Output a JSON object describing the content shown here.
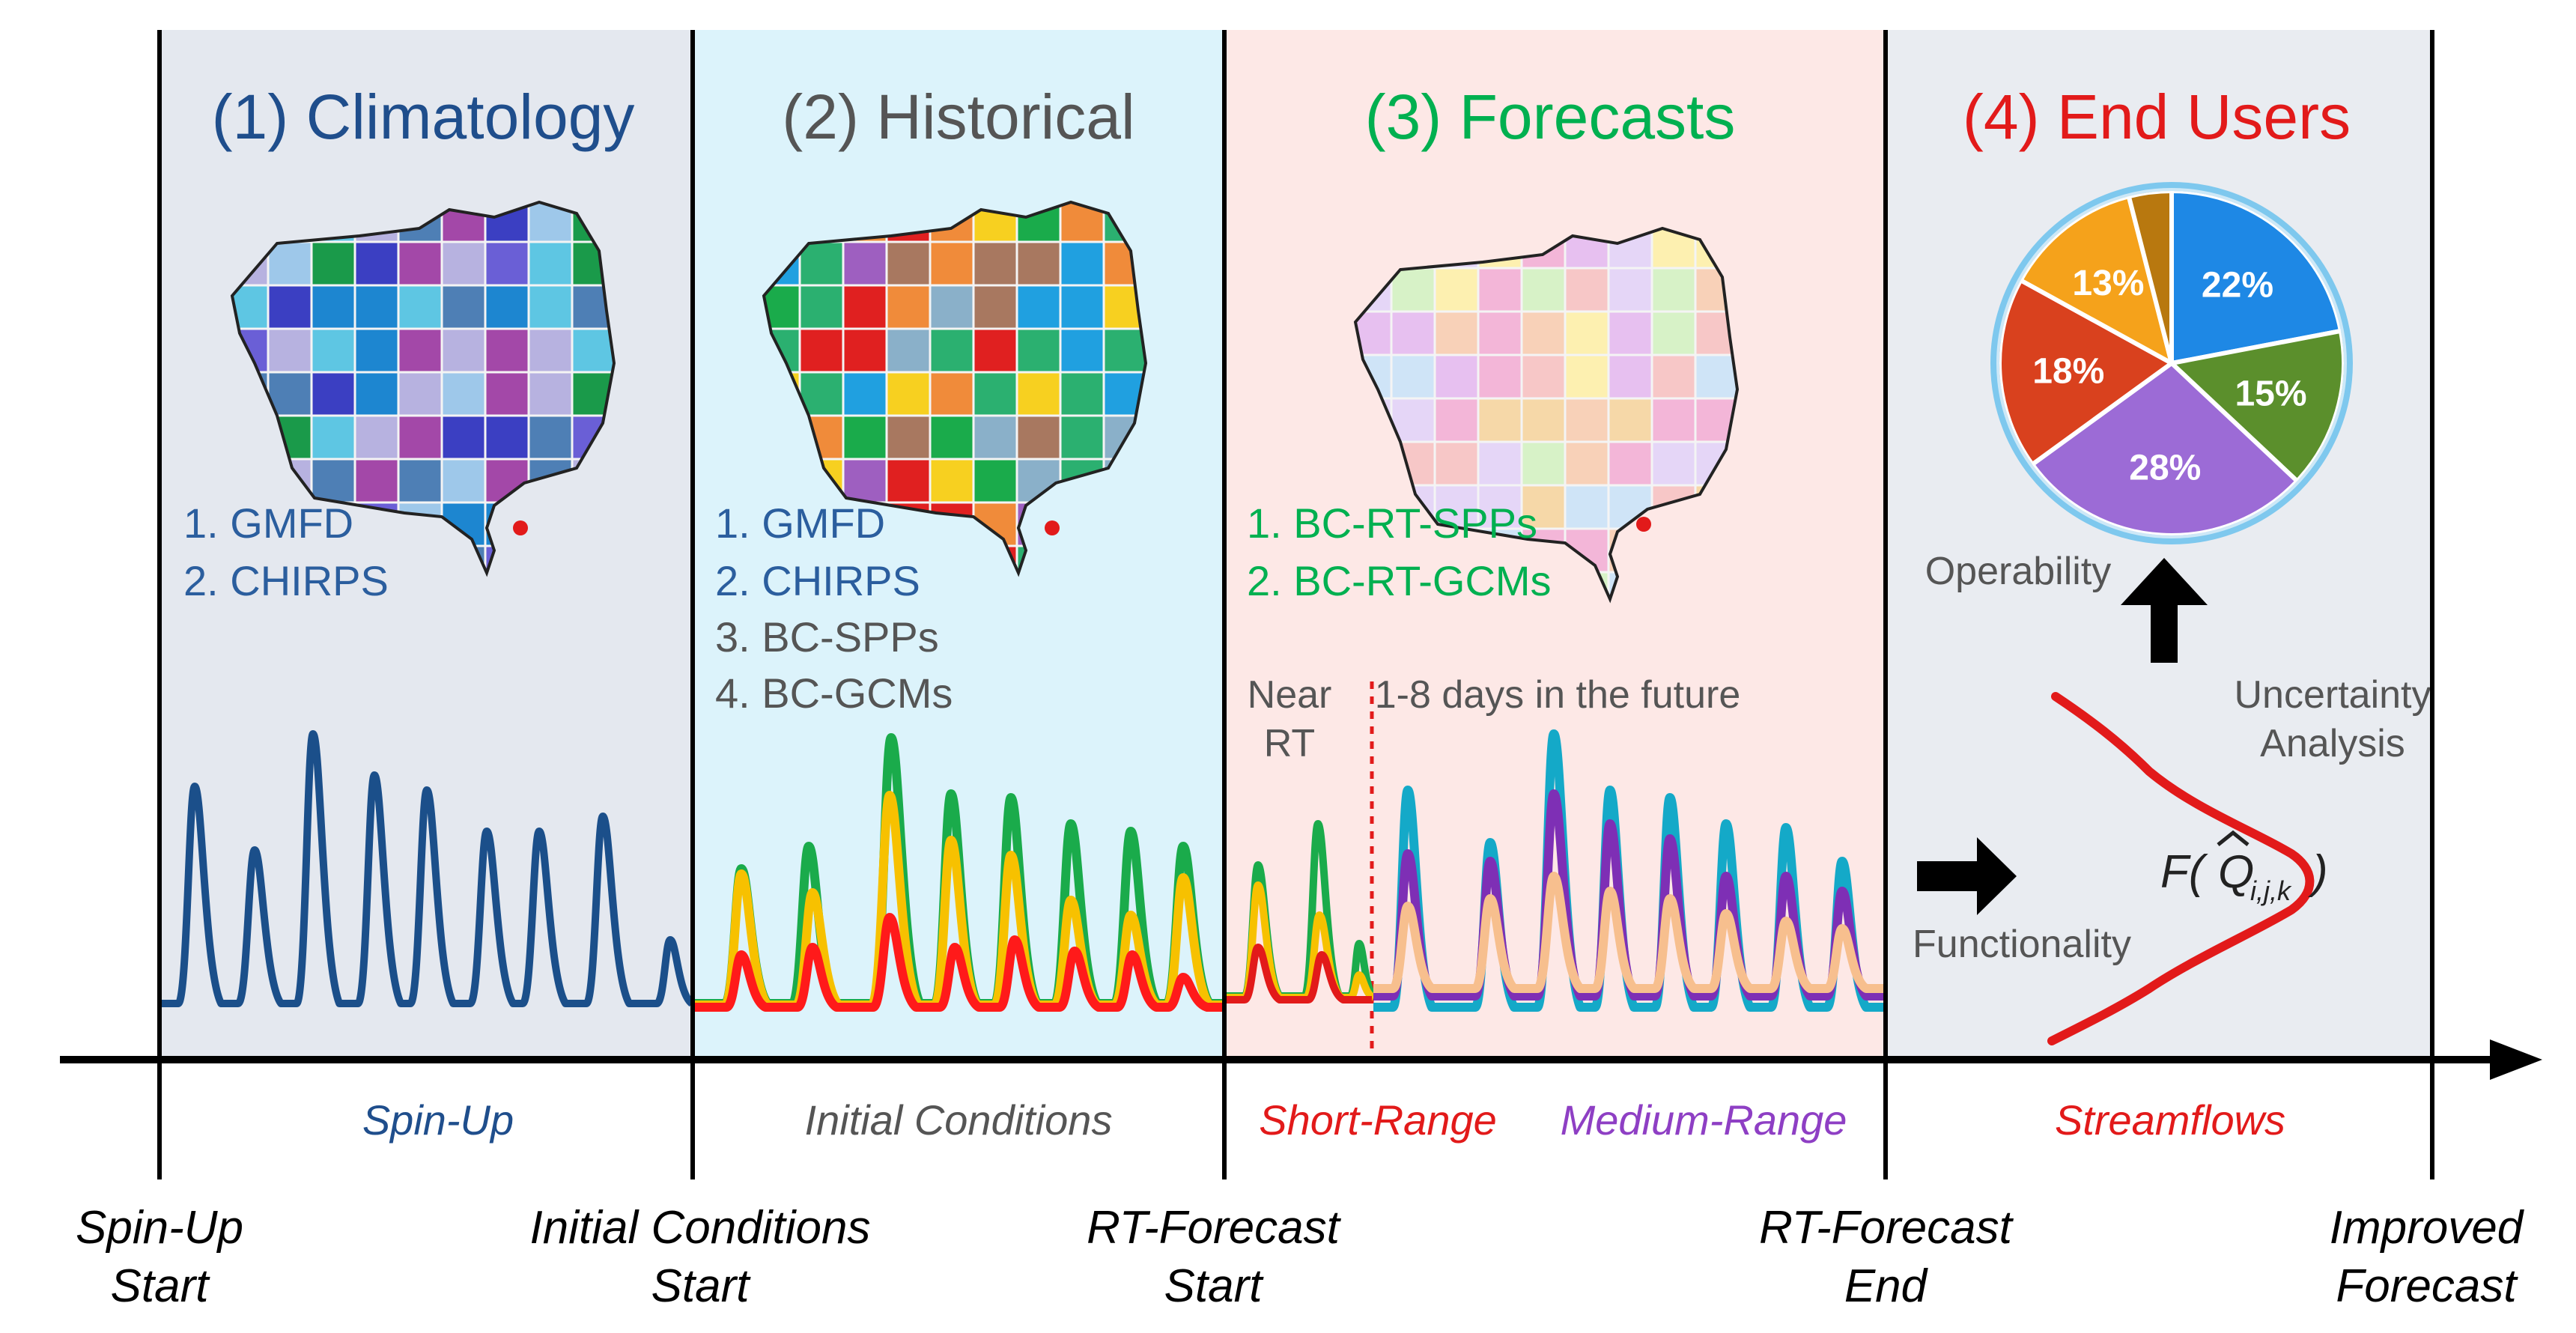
{
  "colors": {
    "climatology": "#1f4e8c",
    "historical": "#555555",
    "forecasts": "#00b050",
    "endusers": "#e21a1a",
    "medium": "#8e3fc4",
    "panel1_bg": "#e4e8ef",
    "panel2_bg": "#dcf3fb",
    "panel3_bg": "#fde8e6",
    "panel4_bg": "#e9ecf1"
  },
  "panels": [
    {
      "title": "(1) Climatology",
      "items": [
        "1. GMFD",
        "2. CHIRPS"
      ]
    },
    {
      "title": "(2) Historical",
      "items": [
        "1. GMFD",
        "2. CHIRPS",
        "3. BC-SPPs",
        "4. BC-GCMs"
      ]
    },
    {
      "title": "(3) Forecasts",
      "items": [
        "1. BC-RT-SPPs",
        "2. BC-RT-GCMs"
      ]
    },
    {
      "title": "(4) End Users"
    }
  ],
  "forecast_labels": {
    "near_rt_1": "Near",
    "near_rt_2": "RT",
    "future": "1-8 days  in the future"
  },
  "end_users": {
    "operability": "Operability",
    "uncertainty_1": "Uncertainty",
    "uncertainty_2": "Analysis",
    "functionality": "Functionality",
    "formula_f": "F(",
    "formula_q": "Q",
    "formula_sub": "i,j,k",
    "formula_close": ")",
    "pie": [
      {
        "label": "22%",
        "value": 22,
        "color": "#1e88e5"
      },
      {
        "label": "15%",
        "value": 15,
        "color": "#5b8f2c"
      },
      {
        "label": "28%",
        "value": 28,
        "color": "#9c6bd6"
      },
      {
        "label": "18%",
        "value": 18,
        "color": "#d9411e"
      },
      {
        "label": "13%",
        "value": 13,
        "color": "#f5a21b"
      },
      {
        "label": "",
        "value": 4,
        "color": "#b8780f"
      }
    ]
  },
  "timeline": {
    "phases": [
      "Spin-Up",
      "Initial Conditions",
      "Short-Range",
      "Medium-Range",
      "Streamflows"
    ],
    "markers": [
      {
        "line1": "Spin-Up",
        "line2": "Start"
      },
      {
        "line1": "Initial Conditions",
        "line2": "Start"
      },
      {
        "line1": "RT-Forecast",
        "line2": "Start"
      },
      {
        "line1": "RT-Forecast",
        "line2": "End"
      },
      {
        "line1": "Improved",
        "line2": "Forecast"
      }
    ]
  }
}
